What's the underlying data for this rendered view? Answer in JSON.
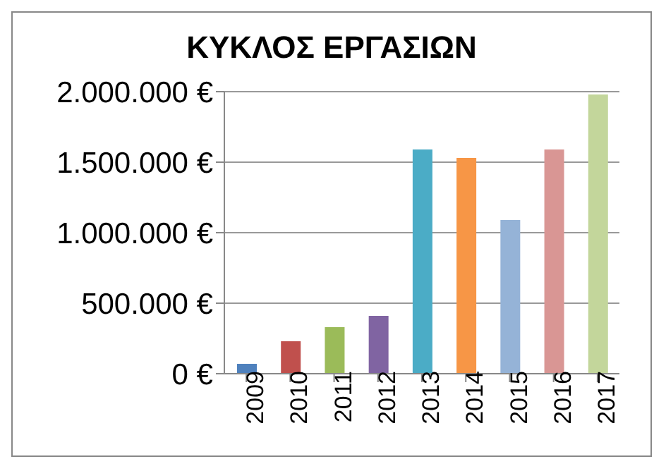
{
  "chart_data": {
    "type": "bar",
    "title": "ΚΥΚΛΟΣ ΕΡΓΑΣΙΩΝ",
    "categories": [
      "2009",
      "2010",
      "2011",
      "2012",
      "2013",
      "2014",
      "2015",
      "2016",
      "2017"
    ],
    "values": [
      70000,
      230000,
      330000,
      410000,
      1590000,
      1530000,
      1090000,
      1590000,
      1980000
    ],
    "colors": [
      "#4f81bd",
      "#c0504d",
      "#9bbb59",
      "#8064a2",
      "#4bacc6",
      "#f79646",
      "#95b3d7",
      "#d99694",
      "#c3d69b"
    ],
    "ylim": [
      0,
      2000000
    ],
    "yticks": [
      {
        "value": 0,
        "label": "0 €"
      },
      {
        "value": 500000,
        "label": "500.000 €"
      },
      {
        "value": 1000000,
        "label": "1.000.000 €"
      },
      {
        "value": 1500000,
        "label": "1.500.000 €"
      },
      {
        "value": 2000000,
        "label": "2.000.000 €"
      }
    ],
    "grid": "y",
    "legend": false
  }
}
